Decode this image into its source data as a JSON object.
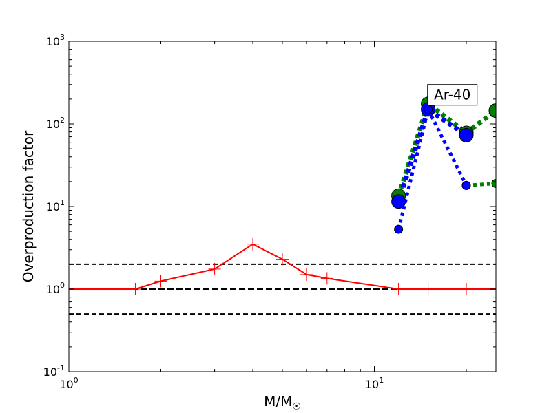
{
  "chart_data": {
    "type": "line",
    "title": "",
    "xlabel": "M/M",
    "xlabel_subscript": "☉",
    "ylabel": "Overproduction factor",
    "xscale": "log",
    "yscale": "log",
    "xlim": [
      1,
      25
    ],
    "ylim": [
      0.1,
      1000
    ],
    "x_ticks": [
      {
        "value": 1,
        "base": "10",
        "exp": "0"
      },
      {
        "value": 10,
        "base": "10",
        "exp": "1"
      }
    ],
    "y_ticks": [
      {
        "value": 0.1,
        "base": "10",
        "exp": "-1"
      },
      {
        "value": 1,
        "base": "10",
        "exp": "0"
      },
      {
        "value": 10,
        "base": "10",
        "exp": "1"
      },
      {
        "value": 100,
        "base": "10",
        "exp": "2"
      },
      {
        "value": 1000,
        "base": "10",
        "exp": "3"
      }
    ],
    "grid": false,
    "reference_lines": [
      {
        "y": 2,
        "style": "dashed",
        "color": "#000000",
        "weight": "thin"
      },
      {
        "y": 1,
        "style": "dashed",
        "color": "#000000",
        "weight": "thick"
      },
      {
        "y": 0.5,
        "style": "dashed",
        "color": "#000000",
        "weight": "thin"
      }
    ],
    "series": [
      {
        "color": "#ff0000",
        "style": "solid",
        "marker": "plus",
        "x": [
          1.0,
          1.65,
          2.0,
          3.0,
          4.0,
          5.0,
          6.0,
          7.0,
          12.0,
          15.0,
          20.0,
          25.0
        ],
        "y": [
          1.0,
          1.0,
          1.25,
          1.75,
          3.5,
          2.3,
          1.5,
          1.35,
          1.0,
          1.0,
          1.0,
          1.0
        ]
      },
      {
        "color": "#008000",
        "style": "dotted",
        "marker": "circle",
        "x": [
          12.0,
          15.0,
          20.0,
          25.0
        ],
        "y": [
          13.5,
          175.0,
          78.0,
          145.0
        ]
      },
      {
        "color": "#0000ff",
        "style": "dotted",
        "marker": "circle",
        "x": [
          12.0,
          15.0,
          20.0
        ],
        "y": [
          11.5,
          150.0,
          73.0
        ]
      },
      {
        "color": "#008000",
        "style": "dotted",
        "marker": "circle-small",
        "x": [
          20.0,
          25.0
        ],
        "y": [
          18.0,
          19.0
        ]
      },
      {
        "color": "#0000ff",
        "style": "dotted",
        "marker": "circle-small",
        "x": [
          12.0,
          15.0,
          20.0
        ],
        "y": [
          5.3,
          150.0,
          18.0
        ]
      }
    ],
    "annotations": [
      {
        "text": "Ar-40",
        "x": 18.0,
        "y": 225.0
      }
    ]
  }
}
